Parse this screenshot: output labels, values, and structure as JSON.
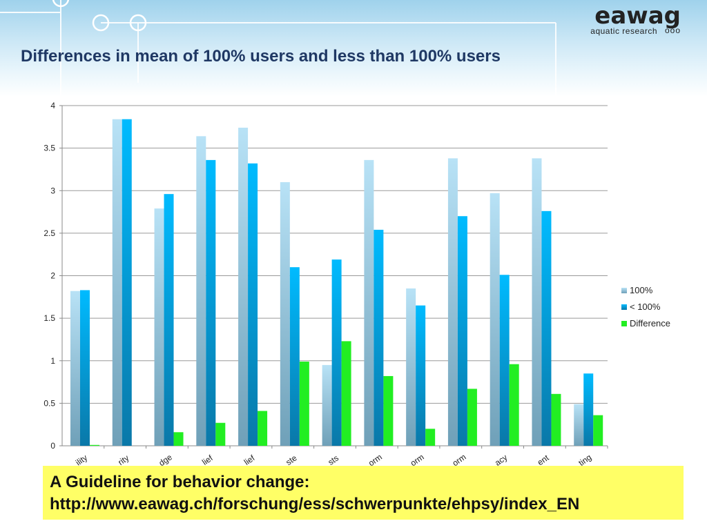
{
  "slide": {
    "title": "Differences in mean of 100% users and less than 100% users"
  },
  "logo": {
    "word": "eawag",
    "subtitle": "aquatic research",
    "dots": "ooo"
  },
  "note": {
    "line1": "A Guideline for behavior change:",
    "line2": "http://www.eawag.ch/forschung/ess/schwerpunkte/ehpsy/index_EN"
  },
  "chart_data": {
    "type": "bar",
    "categories": [
      "ility",
      "rity",
      "dge",
      "lief",
      "lief",
      "ste",
      "sts",
      "orm",
      "orm",
      "orm",
      "acy",
      "ent",
      "ting"
    ],
    "series": [
      {
        "name": "100%",
        "values": [
          1.82,
          3.84,
          2.79,
          3.64,
          3.74,
          3.1,
          0.95,
          3.36,
          1.85,
          3.38,
          2.97,
          3.38,
          0.49
        ],
        "color": "#a6d8f0"
      },
      {
        "name": "< 100%",
        "values": [
          1.83,
          3.84,
          2.96,
          3.36,
          3.32,
          2.1,
          2.19,
          2.54,
          1.65,
          2.7,
          2.01,
          2.76,
          0.85
        ],
        "color": "#00b3ff"
      },
      {
        "name": "Difference",
        "values": [
          0.01,
          0.0,
          0.16,
          0.27,
          0.41,
          0.99,
          1.23,
          0.82,
          0.2,
          0.67,
          0.96,
          0.61,
          0.36
        ],
        "color": "#22ee22"
      }
    ],
    "yticks": [
      "0",
      "0.5",
      "1",
      "1.5",
      "2",
      "2.5",
      "3",
      "3.5",
      "4"
    ],
    "ylim": [
      0,
      4
    ],
    "grid": true,
    "legend_position": "right"
  }
}
